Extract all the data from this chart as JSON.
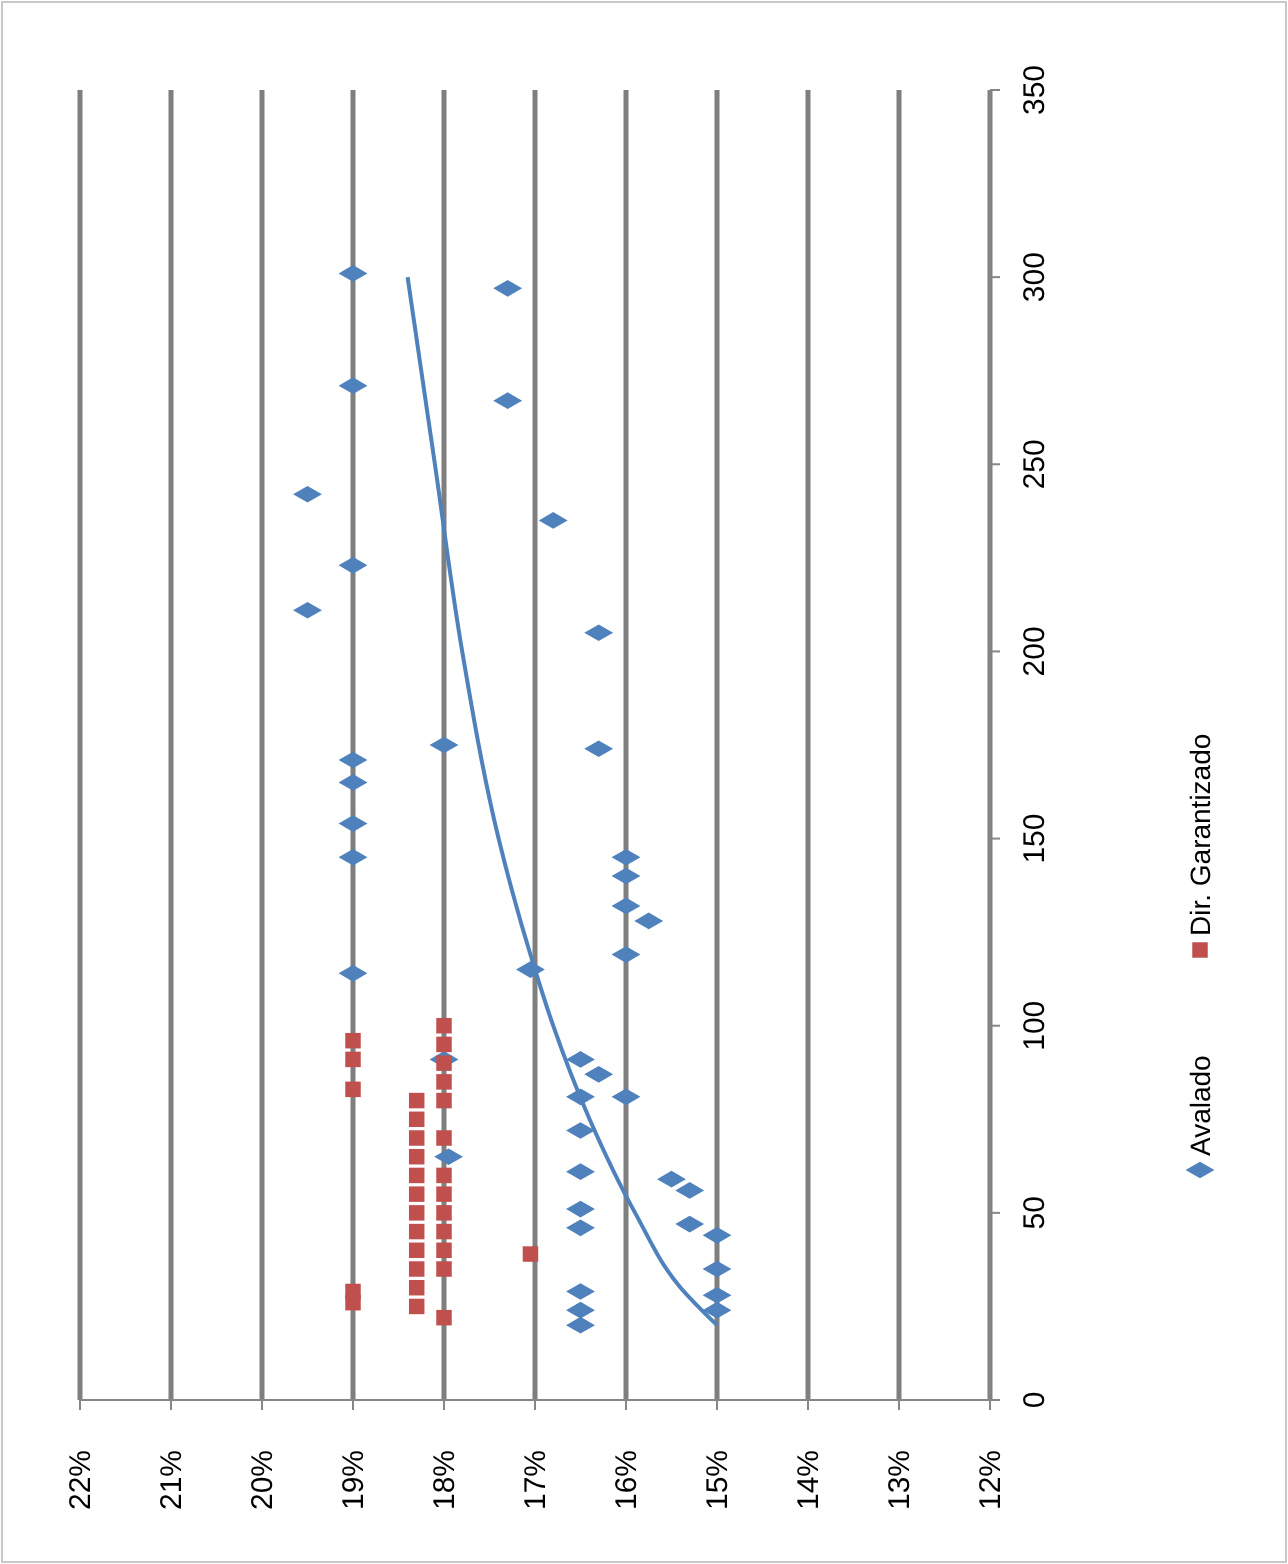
{
  "chart_data": {
    "type": "scatter",
    "xlim": [
      22,
      12
    ],
    "xticks": [
      {
        "value": 22,
        "label": "22%"
      },
      {
        "value": 21,
        "label": "21%"
      },
      {
        "value": 20,
        "label": "20%"
      },
      {
        "value": 19,
        "label": "19%"
      },
      {
        "value": 18,
        "label": "18%"
      },
      {
        "value": 17,
        "label": "17%"
      },
      {
        "value": 16,
        "label": "16%"
      },
      {
        "value": 15,
        "label": "15%"
      },
      {
        "value": 14,
        "label": "14%"
      },
      {
        "value": 13,
        "label": "13%"
      },
      {
        "value": 12,
        "label": "12%"
      }
    ],
    "ylim": [
      0,
      350
    ],
    "yticks": [
      0,
      50,
      100,
      150,
      200,
      250,
      300,
      350
    ],
    "grid": "x",
    "legend": "right",
    "series": [
      {
        "name": "Avalado",
        "color": "#4f81bd",
        "marker": "diamond",
        "values": [
          301,
          271,
          297,
          267,
          242,
          211,
          223,
          235,
          205,
          174,
          175,
          171,
          165,
          154,
          145,
          114,
          115,
          145,
          140,
          132,
          128,
          119,
          81,
          91,
          87,
          81,
          72,
          61,
          51,
          46,
          29,
          24,
          20,
          65,
          91,
          59,
          56,
          47,
          44,
          35,
          28,
          24
        ],
        "x": [
          19,
          19,
          17.3,
          17.3,
          19.5,
          19.5,
          19,
          16.8,
          16.3,
          16.3,
          18,
          19,
          19,
          19,
          19,
          19,
          17.05,
          16,
          16,
          16,
          15.75,
          16,
          16,
          16.5,
          16.3,
          16.5,
          16.5,
          16.5,
          16.5,
          16.5,
          16.5,
          16.5,
          16.5,
          17.95,
          18,
          15.5,
          15.3,
          15.3,
          15,
          15,
          15,
          15
        ]
      },
      {
        "name": "Dir. Garantizado",
        "color": "#c0504d",
        "marker": "square",
        "values": [
          96,
          91,
          83,
          29,
          26,
          80,
          75,
          70,
          65,
          60,
          55,
          50,
          45,
          40,
          35,
          30,
          25,
          100,
          95,
          90,
          85,
          80,
          70,
          60,
          55,
          50,
          45,
          40,
          35,
          22,
          39
        ],
        "x": [
          19,
          19,
          19,
          19,
          19,
          18.3,
          18.3,
          18.3,
          18.3,
          18.3,
          18.3,
          18.3,
          18.3,
          18.3,
          18.3,
          18.3,
          18.3,
          18,
          18,
          18,
          18,
          18,
          18,
          18,
          18,
          18,
          18,
          18,
          18,
          18,
          17.05
        ]
      },
      {
        "type": "line",
        "color": "#4f81bd",
        "marker": "none",
        "line_style": "solid",
        "values": [
          20,
          30,
          50,
          75,
          100,
          115,
          150,
          200,
          250,
          300
        ],
        "x": [
          15,
          15.4,
          15.9,
          16.4,
          16.8,
          17,
          17.4,
          17.8,
          18.1,
          18.4
        ]
      }
    ]
  }
}
